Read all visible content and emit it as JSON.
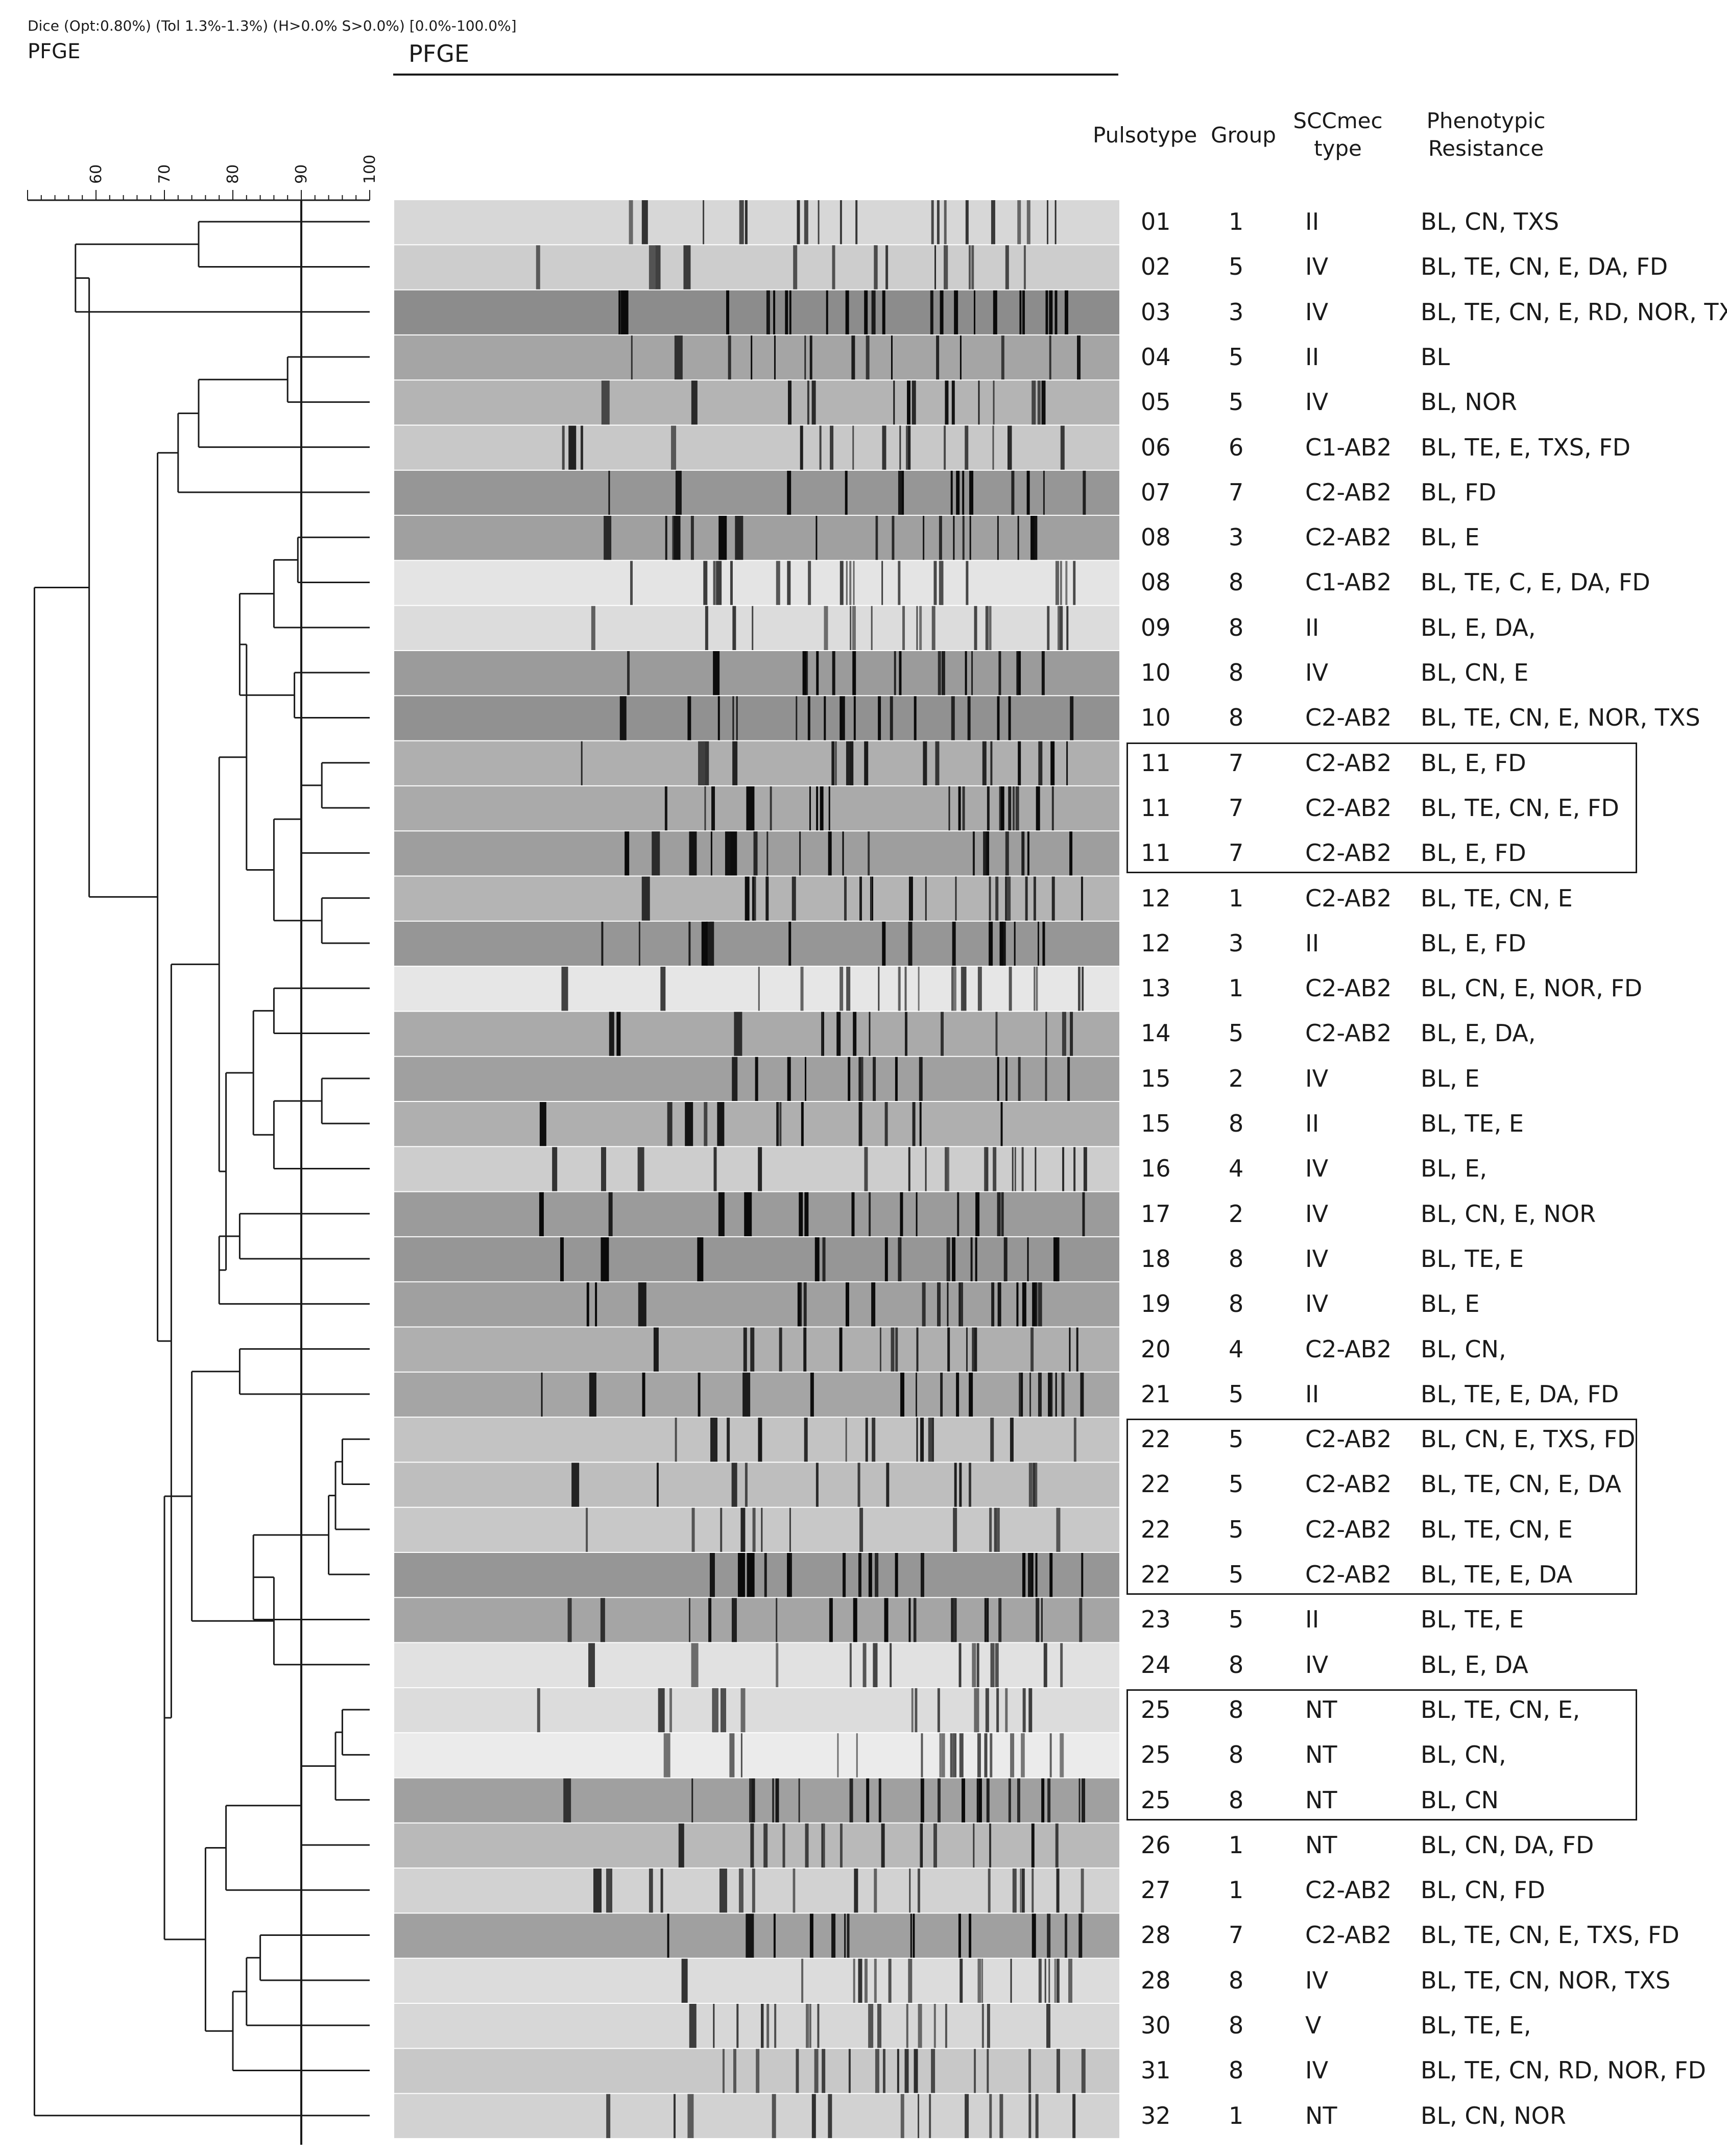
{
  "header": {
    "settings": "Dice (Opt:0.80%) (Tol 1.3%-1.3%) (H>0.0% S>0.0%) [0.0%-100.0%]",
    "experiment_left": "PFGE",
    "experiment_mid": "PFGE"
  },
  "columns": {
    "pulsotype": "Pulsotype",
    "group": "Group",
    "sccmec": [
      "SCCmec",
      "type"
    ],
    "resistance": [
      "Phenotypic",
      "Resistance"
    ]
  },
  "scale": {
    "ticks": [
      60,
      70,
      80,
      90,
      100
    ],
    "min": 50,
    "max": 100,
    "cutoff": 90
  },
  "rows": [
    {
      "pulsotype": "01",
      "group": "1",
      "sccmec": "II",
      "resistance": "BL, CN, TXS"
    },
    {
      "pulsotype": "02",
      "group": "5",
      "sccmec": "IV",
      "resistance": "BL, TE, CN, E, DA, FD"
    },
    {
      "pulsotype": "03",
      "group": "3",
      "sccmec": "IV",
      "resistance": "BL, TE, CN, E, RD, NOR, TXS"
    },
    {
      "pulsotype": "04",
      "group": "5",
      "sccmec": "II",
      "resistance": "BL"
    },
    {
      "pulsotype": "05",
      "group": "5",
      "sccmec": "IV",
      "resistance": "BL, NOR"
    },
    {
      "pulsotype": "06",
      "group": "6",
      "sccmec": "C1-AB2",
      "resistance": "BL, TE, E, TXS, FD"
    },
    {
      "pulsotype": "07",
      "group": "7",
      "sccmec": "C2-AB2",
      "resistance": "BL, FD"
    },
    {
      "pulsotype": "08",
      "group": "3",
      "sccmec": "C2-AB2",
      "resistance": "BL, E"
    },
    {
      "pulsotype": "08",
      "group": "8",
      "sccmec": "C1-AB2",
      "resistance": "BL, TE, C, E, DA, FD"
    },
    {
      "pulsotype": "09",
      "group": "8",
      "sccmec": "II",
      "resistance": "BL, E, DA,"
    },
    {
      "pulsotype": "10",
      "group": "8",
      "sccmec": "IV",
      "resistance": "BL, CN, E"
    },
    {
      "pulsotype": "10",
      "group": "8",
      "sccmec": "C2-AB2",
      "resistance": "BL, TE, CN, E, NOR, TXS"
    },
    {
      "pulsotype": "11",
      "group": "7",
      "sccmec": "C2-AB2",
      "resistance": "BL, E, FD"
    },
    {
      "pulsotype": "11",
      "group": "7",
      "sccmec": "C2-AB2",
      "resistance": "BL, TE, CN, E, FD"
    },
    {
      "pulsotype": "11",
      "group": "7",
      "sccmec": "C2-AB2",
      "resistance": "BL, E, FD"
    },
    {
      "pulsotype": "12",
      "group": "1",
      "sccmec": "C2-AB2",
      "resistance": "BL, TE, CN, E"
    },
    {
      "pulsotype": "12",
      "group": "3",
      "sccmec": "II",
      "resistance": "BL, E, FD"
    },
    {
      "pulsotype": "13",
      "group": "1",
      "sccmec": "C2-AB2",
      "resistance": "BL, CN, E, NOR, FD"
    },
    {
      "pulsotype": "14",
      "group": "5",
      "sccmec": "C2-AB2",
      "resistance": "BL, E, DA,"
    },
    {
      "pulsotype": "15",
      "group": "2",
      "sccmec": "IV",
      "resistance": "BL, E"
    },
    {
      "pulsotype": "15",
      "group": "8",
      "sccmec": "II",
      "resistance": "BL, TE, E"
    },
    {
      "pulsotype": "16",
      "group": "4",
      "sccmec": "IV",
      "resistance": "BL, E,"
    },
    {
      "pulsotype": "17",
      "group": "2",
      "sccmec": "IV",
      "resistance": "BL, CN, E, NOR"
    },
    {
      "pulsotype": "18",
      "group": "8",
      "sccmec": "IV",
      "resistance": "BL, TE, E"
    },
    {
      "pulsotype": "19",
      "group": "8",
      "sccmec": "IV",
      "resistance": "BL, E"
    },
    {
      "pulsotype": "20",
      "group": "4",
      "sccmec": "C2-AB2",
      "resistance": "BL, CN,"
    },
    {
      "pulsotype": "21",
      "group": "5",
      "sccmec": "II",
      "resistance": "BL, TE, E, DA, FD"
    },
    {
      "pulsotype": "22",
      "group": "5",
      "sccmec": "C2-AB2",
      "resistance": "BL, CN, E, TXS, FD"
    },
    {
      "pulsotype": "22",
      "group": "5",
      "sccmec": "C2-AB2",
      "resistance": "BL, TE, CN, E, DA"
    },
    {
      "pulsotype": "22",
      "group": "5",
      "sccmec": "C2-AB2",
      "resistance": "BL, TE, CN, E"
    },
    {
      "pulsotype": "22",
      "group": "5",
      "sccmec": "C2-AB2",
      "resistance": "BL, TE, E, DA"
    },
    {
      "pulsotype": "23",
      "group": "5",
      "sccmec": "II",
      "resistance": "BL, TE, E"
    },
    {
      "pulsotype": "24",
      "group": "8",
      "sccmec": "IV",
      "resistance": "BL, E, DA"
    },
    {
      "pulsotype": "25",
      "group": "8",
      "sccmec": "NT",
      "resistance": "BL, TE, CN, E,"
    },
    {
      "pulsotype": "25",
      "group": "8",
      "sccmec": "NT",
      "resistance": "BL, CN,"
    },
    {
      "pulsotype": "25",
      "group": "8",
      "sccmec": "NT",
      "resistance": "BL, CN"
    },
    {
      "pulsotype": "26",
      "group": "1",
      "sccmec": "NT",
      "resistance": "BL, CN, DA, FD"
    },
    {
      "pulsotype": "27",
      "group": "1",
      "sccmec": "C2-AB2",
      "resistance": "BL, CN, FD"
    },
    {
      "pulsotype": "28",
      "group": "7",
      "sccmec": "C2-AB2",
      "resistance": "BL, TE, CN, E, TXS, FD"
    },
    {
      "pulsotype": "28",
      "group": "8",
      "sccmec": "IV",
      "resistance": "BL, TE, CN, NOR, TXS"
    },
    {
      "pulsotype": "30",
      "group": "8",
      "sccmec": "V",
      "resistance": "BL, TE, E,"
    },
    {
      "pulsotype": "31",
      "group": "8",
      "sccmec": "IV",
      "resistance": "BL, TE, CN, RD, NOR, FD"
    },
    {
      "pulsotype": "32",
      "group": "1",
      "sccmec": "NT",
      "resistance": "BL, CN, NOR"
    }
  ],
  "clusters": [
    {
      "first": 12,
      "last": 14
    },
    {
      "first": 27,
      "last": 30
    },
    {
      "first": 33,
      "last": 35
    }
  ],
  "lane_gray": [
    215,
    205,
    140,
    165,
    180,
    200,
    150,
    160,
    228,
    220,
    155,
    145,
    175,
    170,
    158,
    180,
    150,
    230,
    170,
    160,
    175,
    205,
    155,
    150,
    160,
    175,
    165,
    195,
    190,
    200,
    150,
    165,
    225,
    220,
    235,
    160,
    185,
    210,
    160,
    220,
    215,
    200,
    210
  ]
}
